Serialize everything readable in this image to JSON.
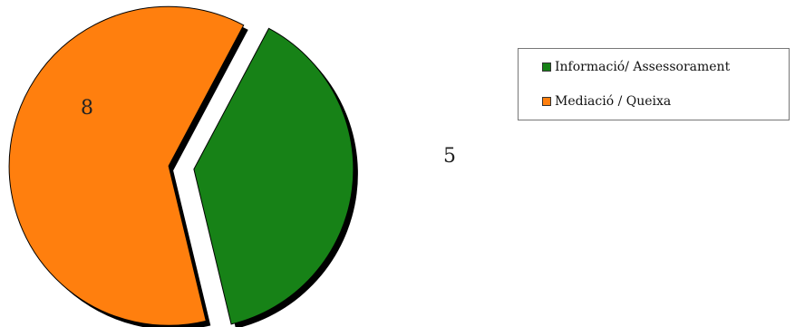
{
  "chart_data": {
    "type": "pie",
    "exploded": true,
    "legend_position": "top-right",
    "slices": [
      {
        "name": "Informació/ Assessorament",
        "value": 5,
        "color": "#178217"
      },
      {
        "name": "Mediació / Queixa",
        "value": 8,
        "color": "#ff7f0e"
      }
    ]
  }
}
